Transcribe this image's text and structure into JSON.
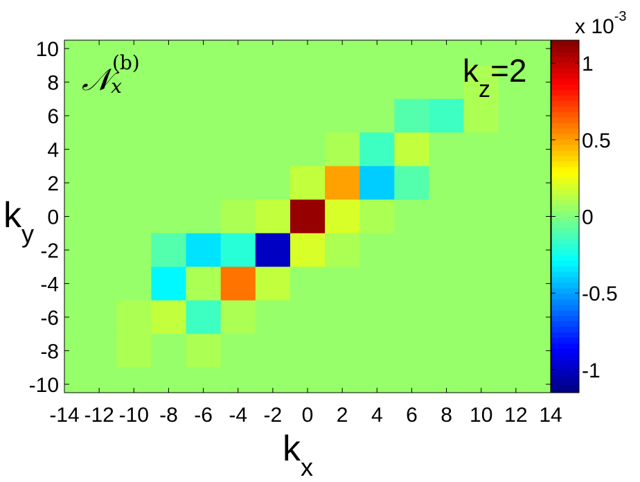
{
  "chart_data": {
    "type": "heatmap",
    "x": [
      -14,
      -12,
      -10,
      -8,
      -6,
      -4,
      -2,
      0,
      2,
      4,
      6,
      8,
      10,
      12,
      14
    ],
    "y": [
      10,
      8,
      6,
      4,
      2,
      0,
      -2,
      -4,
      -6,
      -8,
      -10
    ],
    "z": [
      [
        0.05,
        0.05,
        0.05,
        0.05,
        0.05,
        0.05,
        0.05,
        0.05,
        0.05,
        0.05,
        0.05,
        0.05,
        0.05,
        0.05,
        0.05
      ],
      [
        0.05,
        0.05,
        0.05,
        0.05,
        0.05,
        0.05,
        0.05,
        0.05,
        0.05,
        0.05,
        0.05,
        0.05,
        0.1,
        0.05,
        0.05
      ],
      [
        0.05,
        0.05,
        0.05,
        0.05,
        0.05,
        0.05,
        0.05,
        0.05,
        0.05,
        0.05,
        -0.1,
        -0.15,
        0.1,
        0.05,
        0.05
      ],
      [
        0.05,
        0.05,
        0.05,
        0.05,
        0.05,
        0.05,
        0.05,
        0.05,
        0.1,
        -0.15,
        0.15,
        0.05,
        0.05,
        0.05,
        0.05
      ],
      [
        0.05,
        0.05,
        0.05,
        0.05,
        0.05,
        0.05,
        0.05,
        0.15,
        0.5,
        -0.4,
        -0.1,
        0.05,
        0.05,
        0.05,
        0.05
      ],
      [
        0.05,
        0.05,
        0.05,
        0.05,
        0.05,
        0.1,
        0.15,
        1.1,
        0.2,
        0.1,
        0.05,
        0.05,
        0.05,
        0.05,
        0.05
      ],
      [
        0.05,
        0.05,
        0.05,
        -0.1,
        -0.35,
        -0.2,
        -1.0,
        0.2,
        0.1,
        0.05,
        0.05,
        0.05,
        0.05,
        0.05,
        0.05
      ],
      [
        0.05,
        0.05,
        0.05,
        -0.3,
        0.1,
        0.6,
        0.15,
        0.05,
        0.05,
        0.05,
        0.05,
        0.05,
        0.05,
        0.05,
        0.05
      ],
      [
        0.05,
        0.05,
        0.1,
        0.15,
        -0.15,
        0.1,
        0.05,
        0.05,
        0.05,
        0.05,
        0.05,
        0.05,
        0.05,
        0.05,
        0.05
      ],
      [
        0.05,
        0.05,
        0.1,
        0.05,
        0.1,
        0.05,
        0.05,
        0.05,
        0.05,
        0.05,
        0.05,
        0.05,
        0.05,
        0.05,
        0.05
      ],
      [
        0.05,
        0.05,
        0.05,
        0.05,
        0.05,
        0.05,
        0.05,
        0.05,
        0.05,
        0.05,
        0.05,
        0.05,
        0.05,
        0.05,
        0.05
      ]
    ],
    "xlim": [
      -14,
      14
    ],
    "xticks": [
      -14,
      -12,
      -10,
      -8,
      -6,
      -4,
      -2,
      0,
      2,
      4,
      6,
      8,
      10,
      12,
      14
    ],
    "ylim": [
      -10.5,
      10.5
    ],
    "yticks": [
      -10,
      -8,
      -6,
      -4,
      -2,
      0,
      2,
      4,
      6,
      8,
      10
    ],
    "clim": [
      -1.15,
      1.15
    ],
    "cticks": [
      -1,
      -0.5,
      0,
      0.5,
      1
    ],
    "colormap": "jet",
    "xlabel": {
      "base": "k",
      "sub": "x"
    },
    "ylabel": {
      "base": "k",
      "sub": "y"
    },
    "colorbar_label": {
      "base": "x 10",
      "sup": "-3"
    },
    "annotations": [
      {
        "base": "k",
        "sub": "z",
        "rest": "=2"
      },
      {
        "base": "𝒩",
        "sub": "x",
        "sup": "(b)"
      }
    ]
  }
}
